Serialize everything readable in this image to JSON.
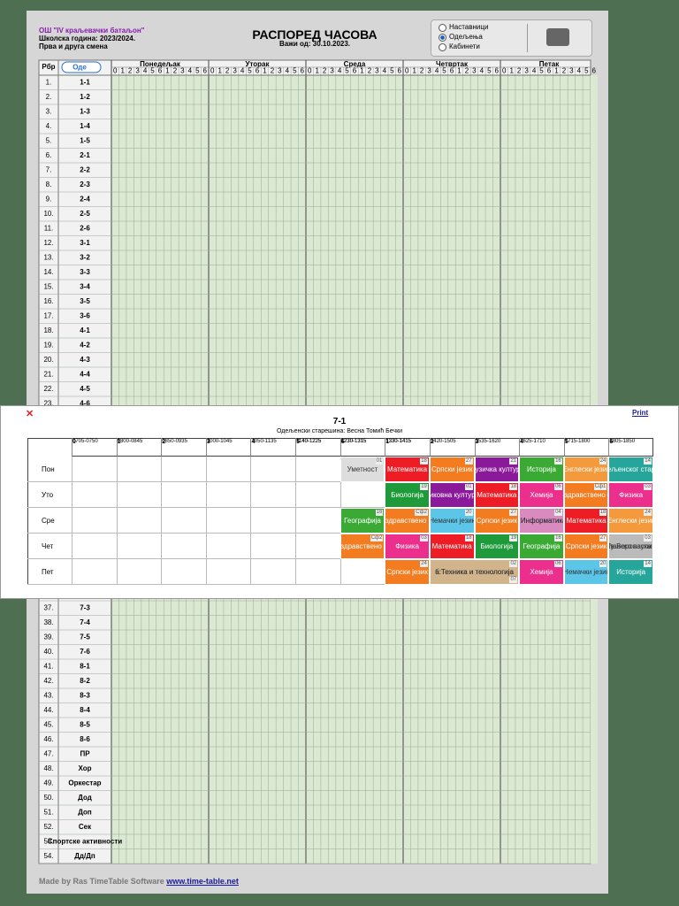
{
  "header": {
    "school": "ОШ \"IV краљевачки батаљон\"",
    "year": "Школска година: 2023/2024.",
    "shift": "Прва и друга смена",
    "title": "РАСПОРЕД ЧАСОВА",
    "valid": "Важи од: 30.10.2023."
  },
  "options": [
    "Наставници",
    "Одељења",
    "Кабинети"
  ],
  "selected_option": 1,
  "grid": {
    "col_no": "Рбр",
    "col_class": "Оде",
    "days": [
      "Понедељак",
      "Уторак",
      "Среда",
      "Четвртак",
      "Петак"
    ],
    "periods": [
      "0",
      "1",
      "2",
      "3",
      "4",
      "5",
      "6",
      "1",
      "2",
      "3",
      "4",
      "5",
      "6"
    ],
    "rows_top": [
      [
        "1.",
        "1-1"
      ],
      [
        "2.",
        "1-2"
      ],
      [
        "3.",
        "1-3"
      ],
      [
        "4.",
        "1-4"
      ],
      [
        "5.",
        "1-5"
      ],
      [
        "6.",
        "2-1"
      ],
      [
        "7.",
        "2-2"
      ],
      [
        "8.",
        "2-3"
      ],
      [
        "9.",
        "2-4"
      ],
      [
        "10.",
        "2-5"
      ],
      [
        "11.",
        "2-6"
      ],
      [
        "12.",
        "3-1"
      ],
      [
        "13.",
        "3-2"
      ],
      [
        "14.",
        "3-3"
      ],
      [
        "15.",
        "3-4"
      ],
      [
        "16.",
        "3-5"
      ],
      [
        "17.",
        "3-6"
      ],
      [
        "18.",
        "4-1"
      ],
      [
        "19.",
        "4-2"
      ],
      [
        "20.",
        "4-3"
      ],
      [
        "21.",
        "4-4"
      ],
      [
        "22.",
        "4-5"
      ],
      [
        "23.",
        "4-6"
      ]
    ],
    "rows_bottom": [
      [
        "37.",
        "7-3"
      ],
      [
        "38.",
        "7-4"
      ],
      [
        "39.",
        "7-5"
      ],
      [
        "40.",
        "7-6"
      ],
      [
        "41.",
        "8-1"
      ],
      [
        "42.",
        "8-2"
      ],
      [
        "43.",
        "8-3"
      ],
      [
        "44.",
        "8-4"
      ],
      [
        "45.",
        "8-5"
      ],
      [
        "46.",
        "8-6"
      ],
      [
        "47.",
        "ПР"
      ],
      [
        "48.",
        "Хор"
      ],
      [
        "49.",
        "Оркестар"
      ],
      [
        "50.",
        "Дод"
      ],
      [
        "51.",
        "Доп"
      ],
      [
        "52.",
        "Сек"
      ],
      [
        "53.",
        "Спортске активности"
      ],
      [
        "54.",
        "Дд/Дп"
      ]
    ]
  },
  "popup": {
    "close": "✕",
    "print": "Print",
    "title": "7-1",
    "teacher": "Одељенски старешина: Весна Томић Бечки",
    "periods": [
      {
        "n": "0",
        "time": "0705-0750"
      },
      {
        "n": "1",
        "time": "0800-0845"
      },
      {
        "n": "2",
        "time": "0850-0935"
      },
      {
        "n": "3",
        "time": "1000-1045"
      },
      {
        "n": "4",
        "time": "1050-1135"
      },
      {
        "n": "5",
        "time": "1140-1225",
        "time2": "1140-1225"
      },
      {
        "n": "6",
        "time": "1230-1315",
        "time2": "1230-1315"
      },
      {
        "n": "1",
        "time": "1330-1415",
        "time2": "1330-1415"
      },
      {
        "n": "2",
        "time": "1420-1505"
      },
      {
        "n": "3",
        "time": "1535-1620"
      },
      {
        "n": "4",
        "time": "1625-1710"
      },
      {
        "n": "5",
        "time": "1715-1800"
      },
      {
        "n": "6",
        "time": "1805-1850"
      }
    ],
    "days": [
      "Пон",
      "Уто",
      "Сре",
      "Чет",
      "Пет"
    ],
    "cells": [
      {
        "day": 0,
        "col": 6,
        "span": 1,
        "text": "Уметност",
        "room": "01",
        "color": "#dddddd"
      },
      {
        "day": 0,
        "col": 7,
        "span": 1,
        "text": "Математика",
        "room": "18",
        "color": "#ee1c24"
      },
      {
        "day": 0,
        "col": 8,
        "span": 1,
        "text": "Српски језик",
        "room": "27",
        "color": "#f47c20"
      },
      {
        "day": 0,
        "col": 9,
        "span": 1,
        "text": "Музичка култура",
        "room": "21",
        "color": "#8b1a9a"
      },
      {
        "day": 0,
        "col": 10,
        "span": 1,
        "text": "Историја",
        "room": "16",
        "color": "#3aaa35"
      },
      {
        "day": 0,
        "col": 11,
        "span": 1,
        "text": "Енглески језик",
        "room": "24",
        "color": "#f59a3c"
      },
      {
        "day": 0,
        "col": 12,
        "span": 1,
        "text": "Час одељенског старешине",
        "room": "14",
        "color": "#26a69a"
      },
      {
        "day": 1,
        "col": 7,
        "span": 1,
        "text": "Биологија",
        "room": "19",
        "color": "#1e9a3a"
      },
      {
        "day": 1,
        "col": 8,
        "span": 1,
        "text": "Ликовна култура",
        "room": "01",
        "color": "#8b1a9a"
      },
      {
        "day": 1,
        "col": 9,
        "span": 1,
        "text": "Математика",
        "room": "18",
        "color": "#ee1c24"
      },
      {
        "day": 1,
        "col": 10,
        "span": 1,
        "text": "Хемија",
        "room": "06",
        "color": "#ec2e8c"
      },
      {
        "day": 1,
        "col": 11,
        "span": 1,
        "text": "Физичко и здравствено васпитање",
        "room": "Сф1",
        "color": "#f47c20"
      },
      {
        "day": 1,
        "col": 12,
        "span": 1,
        "text": "Физика",
        "room": "03",
        "color": "#ec2e8c"
      },
      {
        "day": 2,
        "col": 6,
        "span": 1,
        "text": "Географија",
        "room": "16",
        "color": "#3aaa35"
      },
      {
        "day": 2,
        "col": 7,
        "span": 1,
        "text": "Физичко и здравствено васпитање",
        "room": "Сф2",
        "color": "#f47c20"
      },
      {
        "day": 2,
        "col": 8,
        "span": 1,
        "text": "Немачки језик",
        "room": "20",
        "color": "#5bc6e8"
      },
      {
        "day": 2,
        "col": 9,
        "span": 1,
        "text": "Српски језик",
        "room": "27",
        "color": "#f47c20"
      },
      {
        "day": 2,
        "col": 10,
        "span": 1,
        "text": "и1:Информатика и",
        "text2": "и2:Информатика и",
        "room": "04",
        "color": "#d98bc0"
      },
      {
        "day": 2,
        "col": 11,
        "span": 1,
        "text": "Математика",
        "room": "18",
        "color": "#ee1c24"
      },
      {
        "day": 2,
        "col": 12,
        "span": 1,
        "text": "Енглески језик",
        "room": "24",
        "color": "#f59a3c"
      },
      {
        "day": 3,
        "col": 6,
        "span": 1,
        "text": "Физичко и здравствено васпитање",
        "room": "Сф2",
        "color": "#f47c20"
      },
      {
        "day": 3,
        "col": 7,
        "span": 1,
        "text": "Физика",
        "room": "03",
        "color": "#ec2e8c"
      },
      {
        "day": 3,
        "col": 8,
        "span": 1,
        "text": "Математика",
        "room": "18",
        "color": "#ee1c24"
      },
      {
        "day": 3,
        "col": 9,
        "span": 1,
        "text": "Биологија",
        "room": "19",
        "color": "#1e9a3a"
      },
      {
        "day": 3,
        "col": 10,
        "span": 1,
        "text": "Географија",
        "room": "16",
        "color": "#3aaa35"
      },
      {
        "day": 3,
        "col": 11,
        "span": 1,
        "text": "Српски језик",
        "room": "27",
        "color": "#f47c20"
      },
      {
        "day": 3,
        "col": 12,
        "span": 1,
        "text": "в:Веронаука",
        "text2": "г:Грађанско васпитање",
        "room": "03",
        "color": "#bbbbbb"
      },
      {
        "day": 4,
        "col": 7,
        "span": 1,
        "text": "Српски језик",
        "room": "24",
        "color": "#f47c20"
      },
      {
        "day": 4,
        "col": 8,
        "span": 2,
        "text": "а:Техника и технологија",
        "text2": "б:Техника и технологија",
        "room": "02",
        "room2": "07",
        "color": "#d2b48c"
      },
      {
        "day": 4,
        "col": 10,
        "span": 1,
        "text": "Хемија",
        "room": "06",
        "color": "#ec2e8c"
      },
      {
        "day": 4,
        "col": 11,
        "span": 1,
        "text": "Немачки језик",
        "room": "20",
        "color": "#5bc6e8"
      },
      {
        "day": 4,
        "col": 12,
        "span": 1,
        "text": "Историја",
        "room": "14",
        "color": "#26a69a"
      }
    ]
  },
  "footer": {
    "made": "Made by Ras TimeTable Software",
    "link": "www.time-table.net"
  }
}
